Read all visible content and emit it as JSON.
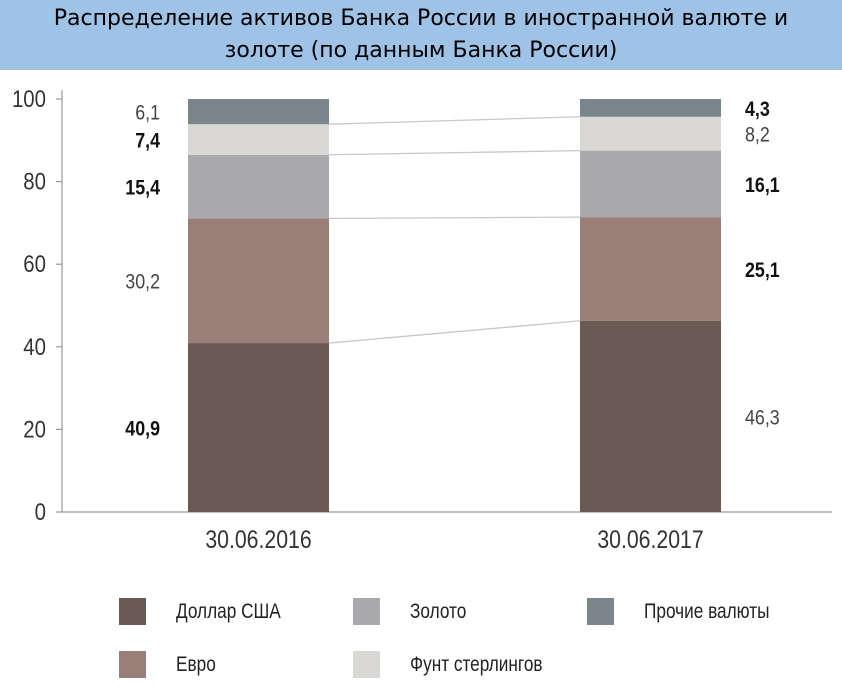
{
  "title": "Распределение активов Банка России в иностранной валюте и золоте (по данным Банка России)",
  "chart_data": {
    "type": "bar",
    "stacked": true,
    "categories": [
      "30.06.2016",
      "30.06.2017"
    ],
    "series": [
      {
        "name": "Доллар США",
        "values": [
          40.9,
          46.3
        ],
        "labels": [
          "40,9",
          "46,3"
        ],
        "bold": [
          true,
          false
        ],
        "color": "#6b5954"
      },
      {
        "name": "Евро",
        "values": [
          30.2,
          25.1
        ],
        "labels": [
          "30,2",
          "25,1"
        ],
        "bold": [
          false,
          true
        ],
        "color": "#9a7f78"
      },
      {
        "name": "Золото",
        "values": [
          15.4,
          16.1
        ],
        "labels": [
          "15,4",
          "16,1"
        ],
        "bold": [
          true,
          true
        ],
        "color": "#a9a8ad"
      },
      {
        "name": "Фунт стерлингов",
        "values": [
          7.4,
          8.2
        ],
        "labels": [
          "7,4",
          "8,2"
        ],
        "bold": [
          true,
          false
        ],
        "color": "#d9d8d4"
      },
      {
        "name": "Прочие валюты",
        "values": [
          6.1,
          4.3
        ],
        "labels": [
          "6,1",
          "4,3"
        ],
        "bold": [
          false,
          true
        ],
        "color": "#7a868c"
      }
    ],
    "ylim": [
      0,
      100
    ],
    "yticks": [
      0,
      20,
      40,
      60,
      80,
      100
    ],
    "xlabel": "",
    "ylabel": "",
    "grid": false,
    "legend": "bottom"
  }
}
